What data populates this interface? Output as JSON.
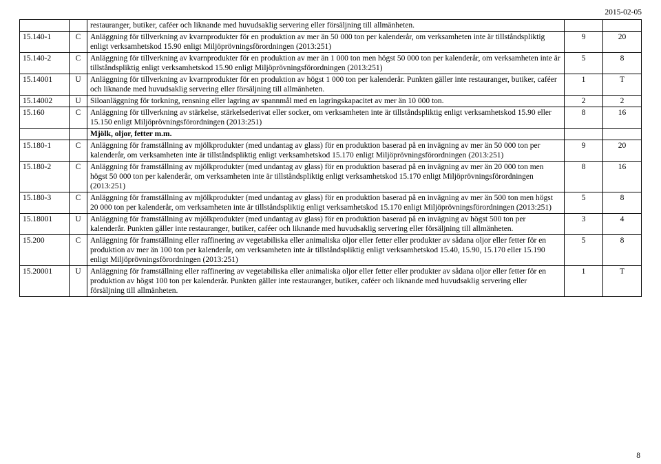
{
  "header": {
    "date": "2015-02-05"
  },
  "section_heading": "Mjölk, oljor, fetter m.m.",
  "rows": [
    {
      "code": "",
      "type": "",
      "desc": "restauranger, butiker, caféer och liknande med huvudsaklig servering eller försäljning till allmänheten.",
      "a": "",
      "b": ""
    },
    {
      "code": "15.140-1",
      "type": "C",
      "desc": "Anläggning för tillverkning av kvarnprodukter för en produktion av mer än 50 000 ton per kalenderår, om verksamheten inte är tillståndspliktig enligt verksamhetskod 15.90 enligt Miljöprövningsförordningen (2013:251)",
      "a": "9",
      "b": "20"
    },
    {
      "code": "15.140-2",
      "type": "C",
      "desc": "Anläggning för tillverkning av kvarnprodukter för en produktion av mer än 1 000 ton men högst 50 000 ton per kalenderår, om verksamheten inte är tillståndspliktig enligt verksamhetskod 15.90 enligt Miljöprövningsförordningen (2013:251)",
      "a": "5",
      "b": "8"
    },
    {
      "code": "15.14001",
      "type": "U",
      "desc": "Anläggning för tillverkning av kvarnprodukter för en produktion av högst 1 000 ton per kalenderår. Punkten gäller inte restauranger, butiker, caféer och liknande med huvudsaklig servering eller försäljning till allmänheten.",
      "a": "1",
      "b": "T"
    },
    {
      "code": "15.14002",
      "type": "U",
      "desc": "Siloanläggning för torkning, rensning eller lagring av spannmål med en lagringskapacitet av mer än 10 000 ton.",
      "a": "2",
      "b": "2"
    },
    {
      "code": "15.160",
      "type": "C",
      "desc": "Anläggning för tillverkning av stärkelse, stärkelsederivat eller socker, om verksamheten inte är tillståndspliktig enligt verksamhetskod 15.90 eller 15.150 enligt Miljöprövningsförordningen (2013:251)",
      "a": "8",
      "b": "16"
    },
    {
      "code": "15.180-1",
      "type": "C",
      "desc": "Anläggning för framställning av mjölkprodukter (med undantag av glass) för en produktion baserad på en invägning av mer än 50 000 ton per kalenderår, om verksamheten inte är tillståndspliktig enligt verksamhetskod 15.170 enligt Miljöprövningsförordningen (2013:251)",
      "a": "9",
      "b": "20"
    },
    {
      "code": "15.180-2",
      "type": "C",
      "desc": "Anläggning för framställning av mjölkprodukter (med undantag av glass) för en produktion baserad på en invägning av mer än 20 000 ton men högst 50 000 ton per kalenderår, om verksamheten inte är tillståndspliktig enligt verksamhetskod 15.170 enligt Miljöprövningsförordningen (2013:251)",
      "a": "8",
      "b": "16"
    },
    {
      "code": "15.180-3",
      "type": "C",
      "desc": "Anläggning för framställning av mjölkprodukter (med undantag av glass) för en produktion baserad på en invägning av mer än 500 ton men högst 20 000 ton per kalenderår, om verksamheten inte är tillståndspliktig enligt verksamhetskod 15.170 enligt Miljöprövningsförordningen (2013:251)",
      "a": "5",
      "b": "8"
    },
    {
      "code": "15.18001",
      "type": "U",
      "desc": "Anläggning för framställning av mjölkprodukter (med undantag av glass) för en produktion baserad på en invägning av högst 500 ton per kalenderår. Punkten gäller inte restauranger, butiker, caféer och liknande med huvudsaklig servering eller försäljning till allmänheten.",
      "a": "3",
      "b": "4"
    },
    {
      "code": "15.200",
      "type": "C",
      "desc": "Anläggning för framställning eller raffinering av vegetabiliska eller animaliska oljor eller fetter eller produkter av sådana oljor eller fetter för en produktion av mer än 100 ton per kalenderår, om verksamheten inte är tillståndspliktig enligt verksamhetskod 15.40, 15.90, 15.170 eller 15.190 enligt Miljöprövningsförordningen (2013:251)",
      "a": "5",
      "b": "8"
    },
    {
      "code": "15.20001",
      "type": "U",
      "desc": "Anläggning för framställning eller raffinering av vegetabiliska eller animaliska oljor eller fetter eller produkter av sådana oljor eller fetter för en produktion av högst 100 ton per kalenderår. Punkten gäller inte restauranger, butiker, caféer och liknande med huvudsaklig servering eller försäljning till allmänheten.",
      "a": "1",
      "b": "T"
    }
  ],
  "pagenum": "8"
}
